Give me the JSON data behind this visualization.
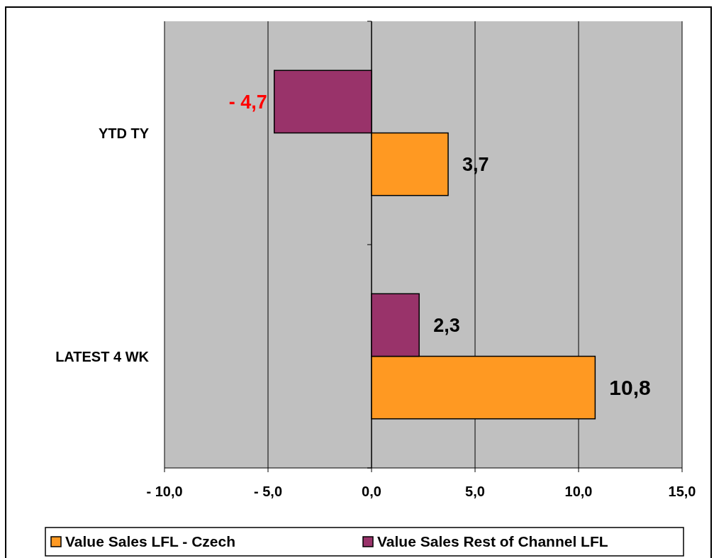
{
  "chart_data": {
    "type": "bar",
    "orientation": "horizontal",
    "categories": [
      "YTD TY",
      "LATEST 4 WK"
    ],
    "series": [
      {
        "name": "Value Sales LFL - Czech",
        "color": "#ff9922",
        "values": [
          3.7,
          10.8
        ],
        "value_labels": [
          "3,7",
          "10,8"
        ]
      },
      {
        "name": "Value Sales Rest of Channel LFL",
        "color": "#99336a",
        "values": [
          -4.7,
          2.3
        ],
        "value_labels": [
          "- 4,7",
          "2,3"
        ]
      }
    ],
    "xlim": [
      -10,
      15
    ],
    "xticks": [
      {
        "value": -10,
        "label": "- 10,0"
      },
      {
        "value": -5,
        "label": "- 5,0"
      },
      {
        "value": 0,
        "label": "0,0"
      },
      {
        "value": 5,
        "label": "5,0"
      },
      {
        "value": 10,
        "label": "10,0"
      },
      {
        "value": 15,
        "label": "15,0"
      }
    ],
    "grid": "x",
    "legend": "bottom"
  }
}
